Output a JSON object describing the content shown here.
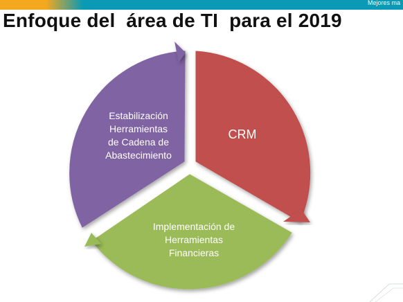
{
  "header": {
    "tagline": "Mejores ma",
    "title": "Enfoque del  área de TI  para el 2019"
  },
  "cycle": {
    "segments": [
      {
        "label": "Estabilización\nHerramientas\nde Cadena de\nAbastecimiento",
        "color": "#8064a2"
      },
      {
        "label": "CRM",
        "color": "#c0504d"
      },
      {
        "label": "Implementación de\nHerramientas\nFinancieras",
        "color": "#9bbb59"
      }
    ]
  },
  "colors": {
    "brand_bar": "#0a9ab5",
    "brand_accent": "#f4a81d"
  }
}
